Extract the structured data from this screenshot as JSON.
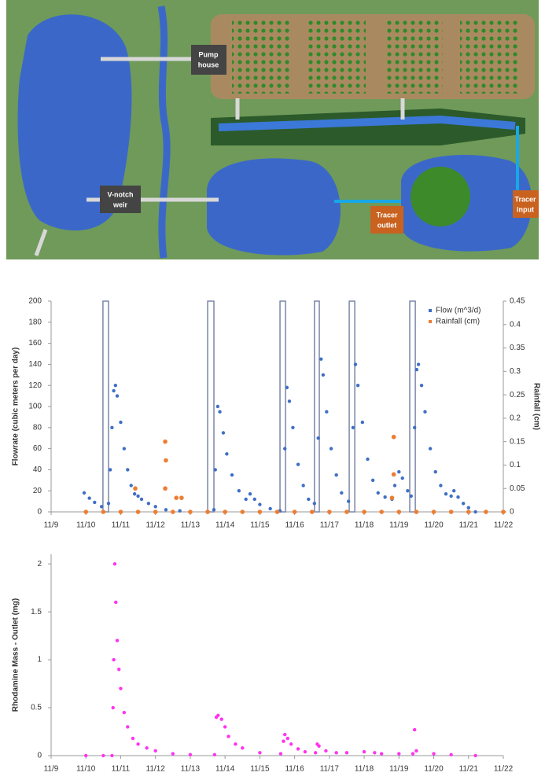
{
  "diagram": {
    "labels": [
      {
        "lines": [
          "Pump",
          "house"
        ]
      },
      {
        "lines": [
          "V-notch",
          "weir"
        ]
      },
      {
        "lines": [
          "Tracer",
          "outlet"
        ]
      },
      {
        "lines": [
          "Tracer",
          "input"
        ]
      }
    ]
  },
  "chart_data": [
    {
      "type": "scatter",
      "ylabel": "Flowrate (cubic meters per day)",
      "y2label": "Rainfall (cm)",
      "legend": "upper right",
      "xlim": [
        9,
        22
      ],
      "xticks": [
        {
          "value": 9,
          "label": "11/9"
        },
        {
          "value": 10,
          "label": "11/10"
        },
        {
          "value": 11,
          "label": "11/11"
        },
        {
          "value": 12,
          "label": "11/12"
        },
        {
          "value": 13,
          "label": "11/13"
        },
        {
          "value": 14,
          "label": "11/14"
        },
        {
          "value": 15,
          "label": "11/15"
        },
        {
          "value": 16,
          "label": "11/16"
        },
        {
          "value": 17,
          "label": "11/17"
        },
        {
          "value": 18,
          "label": "11/18"
        },
        {
          "value": 19,
          "label": "11/19"
        },
        {
          "value": 20,
          "label": "11/20"
        },
        {
          "value": 21,
          "label": "11/21"
        },
        {
          "value": 22,
          "label": "11/22"
        }
      ],
      "ylim": [
        0,
        200
      ],
      "yticks": [
        0,
        20,
        40,
        60,
        80,
        100,
        120,
        140,
        160,
        180,
        200
      ],
      "y2lim": [
        0,
        0.45
      ],
      "y2ticks": [
        0,
        0.05,
        0.1,
        0.15,
        0.2,
        0.25,
        0.3,
        0.35,
        0.4,
        0.45
      ],
      "bands": [
        [
          10.49,
          10.65
        ],
        [
          13.5,
          13.68
        ],
        [
          15.58,
          15.74
        ],
        [
          16.57,
          16.71
        ],
        [
          17.57,
          17.73
        ],
        [
          19.31,
          19.47
        ]
      ],
      "series": [
        {
          "name": "Flow (m^3/d)",
          "color": "#3f6fc4",
          "x": [
            9.95,
            10.1,
            10.25,
            10.45,
            10.65,
            10.7,
            10.75,
            10.8,
            10.85,
            10.9,
            11.0,
            11.1,
            11.2,
            11.3,
            11.4,
            11.5,
            11.6,
            11.8,
            12.0,
            12.3,
            12.7,
            13.0,
            13.5,
            13.68,
            13.72,
            13.79,
            13.85,
            13.95,
            14.05,
            14.2,
            14.4,
            14.6,
            14.72,
            14.85,
            15.0,
            15.3,
            15.58,
            15.72,
            15.78,
            15.85,
            15.95,
            16.1,
            16.25,
            16.4,
            16.57,
            16.68,
            16.76,
            16.82,
            16.92,
            17.05,
            17.2,
            17.35,
            17.55,
            17.68,
            17.75,
            17.82,
            17.95,
            18.1,
            18.25,
            18.4,
            18.6,
            18.8,
            18.88,
            19.0,
            19.1,
            19.25,
            19.35,
            19.45,
            19.51,
            19.56,
            19.65,
            19.75,
            19.9,
            20.05,
            20.2,
            20.35,
            20.5,
            20.58,
            20.7,
            20.85,
            21.0,
            21.2
          ],
          "values": [
            18,
            13,
            9,
            5,
            8,
            40,
            80,
            115,
            120,
            110,
            85,
            60,
            40,
            25,
            17,
            15,
            12,
            8,
            5,
            2,
            1,
            0,
            0,
            2,
            40,
            100,
            95,
            75,
            55,
            35,
            20,
            12,
            17,
            12,
            7,
            3,
            1,
            60,
            118,
            105,
            80,
            45,
            25,
            12,
            8,
            70,
            145,
            130,
            95,
            60,
            35,
            18,
            10,
            80,
            140,
            120,
            85,
            50,
            30,
            18,
            14,
            12,
            25,
            38,
            32,
            20,
            15,
            80,
            135,
            140,
            120,
            95,
            60,
            38,
            25,
            17,
            15,
            20,
            14,
            8,
            4,
            0
          ]
        },
        {
          "name": "Rainfall (cm)",
          "color": "#ed7d31",
          "axis": "y2",
          "x": [
            10.0,
            10.5,
            11.0,
            11.5,
            12.0,
            12.5,
            13.0,
            13.5,
            14.0,
            14.5,
            15.0,
            15.5,
            16.0,
            16.5,
            17.0,
            17.5,
            18.0,
            18.5,
            19.0,
            19.5,
            20.0,
            20.5,
            21.0,
            21.5,
            22.0,
            11.42,
            12.28,
            12.28,
            12.3,
            12.6,
            12.75,
            18.85,
            18.85,
            18.8
          ],
          "values": [
            0,
            0,
            0,
            0,
            0,
            0,
            0,
            0,
            0,
            0,
            0,
            0,
            0,
            0,
            0,
            0,
            0,
            0,
            0,
            0,
            0,
            0,
            0,
            0,
            0,
            0.05,
            0.15,
            0.05,
            0.11,
            0.03,
            0.03,
            0.16,
            0.08,
            0.03
          ]
        }
      ]
    },
    {
      "type": "scatter",
      "ylabel": "Rhodamine Mass - Outlet (mg)",
      "xlim": [
        9,
        22
      ],
      "xticks": [
        {
          "value": 9,
          "label": "11/9"
        },
        {
          "value": 10,
          "label": "11/10"
        },
        {
          "value": 11,
          "label": "11/11"
        },
        {
          "value": 12,
          "label": "11/12"
        },
        {
          "value": 13,
          "label": "11/13"
        },
        {
          "value": 14,
          "label": "11/14"
        },
        {
          "value": 15,
          "label": "11/15"
        },
        {
          "value": 16,
          "label": "11/16"
        },
        {
          "value": 17,
          "label": "11/17"
        },
        {
          "value": 18,
          "label": "11/18"
        },
        {
          "value": 19,
          "label": "11/19"
        },
        {
          "value": 20,
          "label": "11/20"
        },
        {
          "value": 21,
          "label": "11/21"
        },
        {
          "value": 22,
          "label": "11/22"
        }
      ],
      "ylim": [
        0,
        2.1
      ],
      "yticks": [
        0,
        0.5,
        1,
        1.5,
        2
      ],
      "series": [
        {
          "name": "Rhodamine",
          "color": "#ff33ee",
          "x": [
            10.0,
            10.5,
            10.75,
            10.78,
            10.8,
            10.83,
            10.86,
            10.9,
            10.95,
            11.0,
            11.1,
            11.2,
            11.35,
            11.5,
            11.75,
            12.0,
            12.5,
            13.0,
            13.7,
            13.75,
            13.8,
            13.9,
            14.0,
            14.1,
            14.3,
            14.5,
            15.0,
            15.6,
            15.68,
            15.72,
            15.8,
            15.9,
            16.1,
            16.3,
            16.6,
            16.65,
            16.7,
            16.9,
            17.2,
            17.5,
            18.0,
            18.3,
            18.5,
            19.0,
            19.4,
            19.45,
            19.5,
            20.0,
            20.5,
            21.2
          ],
          "values": [
            0,
            0,
            0,
            0.5,
            1.0,
            2.0,
            1.6,
            1.2,
            0.9,
            0.7,
            0.45,
            0.3,
            0.18,
            0.12,
            0.08,
            0.05,
            0.02,
            0.01,
            0.01,
            0.4,
            0.42,
            0.38,
            0.3,
            0.2,
            0.12,
            0.08,
            0.03,
            0.02,
            0.15,
            0.22,
            0.18,
            0.12,
            0.07,
            0.04,
            0.03,
            0.12,
            0.1,
            0.05,
            0.03,
            0.03,
            0.04,
            0.03,
            0.02,
            0.02,
            0.02,
            0.27,
            0.05,
            0.02,
            0.01,
            0
          ]
        }
      ]
    }
  ]
}
